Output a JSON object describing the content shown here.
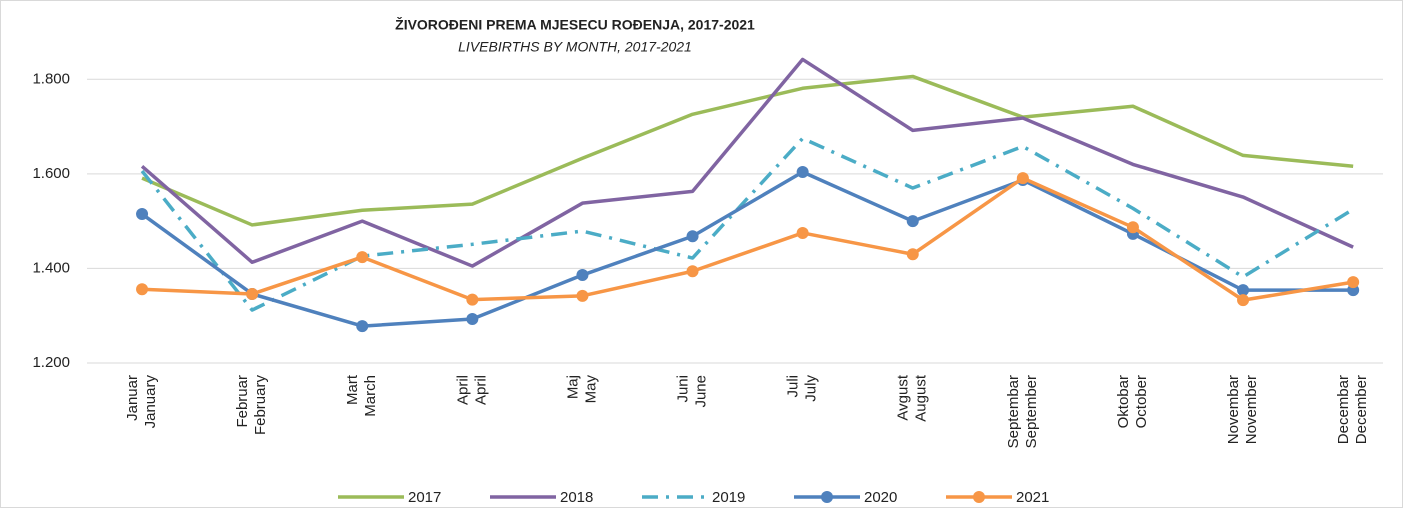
{
  "chart_data": {
    "type": "line",
    "title": "ŽIVOROĐENI  PREMA MJESECU ROĐENJA, 2017-2021",
    "subtitle": "LIVEBIRTHS BY MONTH, 2017-2021",
    "categories": [
      [
        "Januar",
        "January"
      ],
      [
        "Februar",
        "February"
      ],
      [
        "Mart",
        "March"
      ],
      [
        "April",
        "April"
      ],
      [
        "Maj",
        "May"
      ],
      [
        "Juni",
        "June"
      ],
      [
        "Juli",
        "July"
      ],
      [
        "Avgust",
        "August"
      ],
      [
        "Septembar",
        "September"
      ],
      [
        "Oktobar",
        "October"
      ],
      [
        "Novembar",
        "November"
      ],
      [
        "Decembar",
        "December"
      ]
    ],
    "ylim": [
      1200,
      1900
    ],
    "yticks": [
      {
        "value": 1200,
        "label": "1.200"
      },
      {
        "value": 1400,
        "label": "1.400"
      },
      {
        "value": 1600,
        "label": "1.600"
      },
      {
        "value": 1800,
        "label": "1.800"
      }
    ],
    "grid": true,
    "legend": "bottom",
    "series": [
      {
        "name": "2017",
        "color": "#9bbb59",
        "dash": "solid",
        "marker": false,
        "values": [
          1591,
          1492,
          1523,
          1536,
          1633,
          1726,
          1781,
          1806,
          1720,
          1743,
          1639,
          1616
        ]
      },
      {
        "name": "2018",
        "color": "#8064a2",
        "dash": "solid",
        "marker": false,
        "values": [
          1616,
          1413,
          1500,
          1405,
          1538,
          1563,
          1842,
          1692,
          1718,
          1620,
          1551,
          1445
        ]
      },
      {
        "name": "2019",
        "color": "#4bacc6",
        "dash": "dashdot",
        "marker": false,
        "values": [
          1606,
          1312,
          1426,
          1451,
          1479,
          1422,
          1675,
          1570,
          1658,
          1527,
          1382,
          1525
        ]
      },
      {
        "name": "2020",
        "color": "#4f81bd",
        "dash": "solid",
        "marker": true,
        "values": [
          1515,
          1346,
          1278,
          1293,
          1386,
          1468,
          1604,
          1500,
          1587,
          1473,
          1354,
          1354
        ]
      },
      {
        "name": "2021",
        "color": "#f79646",
        "dash": "solid",
        "marker": true,
        "values": [
          1356,
          1346,
          1424,
          1334,
          1342,
          1394,
          1475,
          1430,
          1591,
          1487,
          1333,
          1371
        ]
      }
    ]
  }
}
